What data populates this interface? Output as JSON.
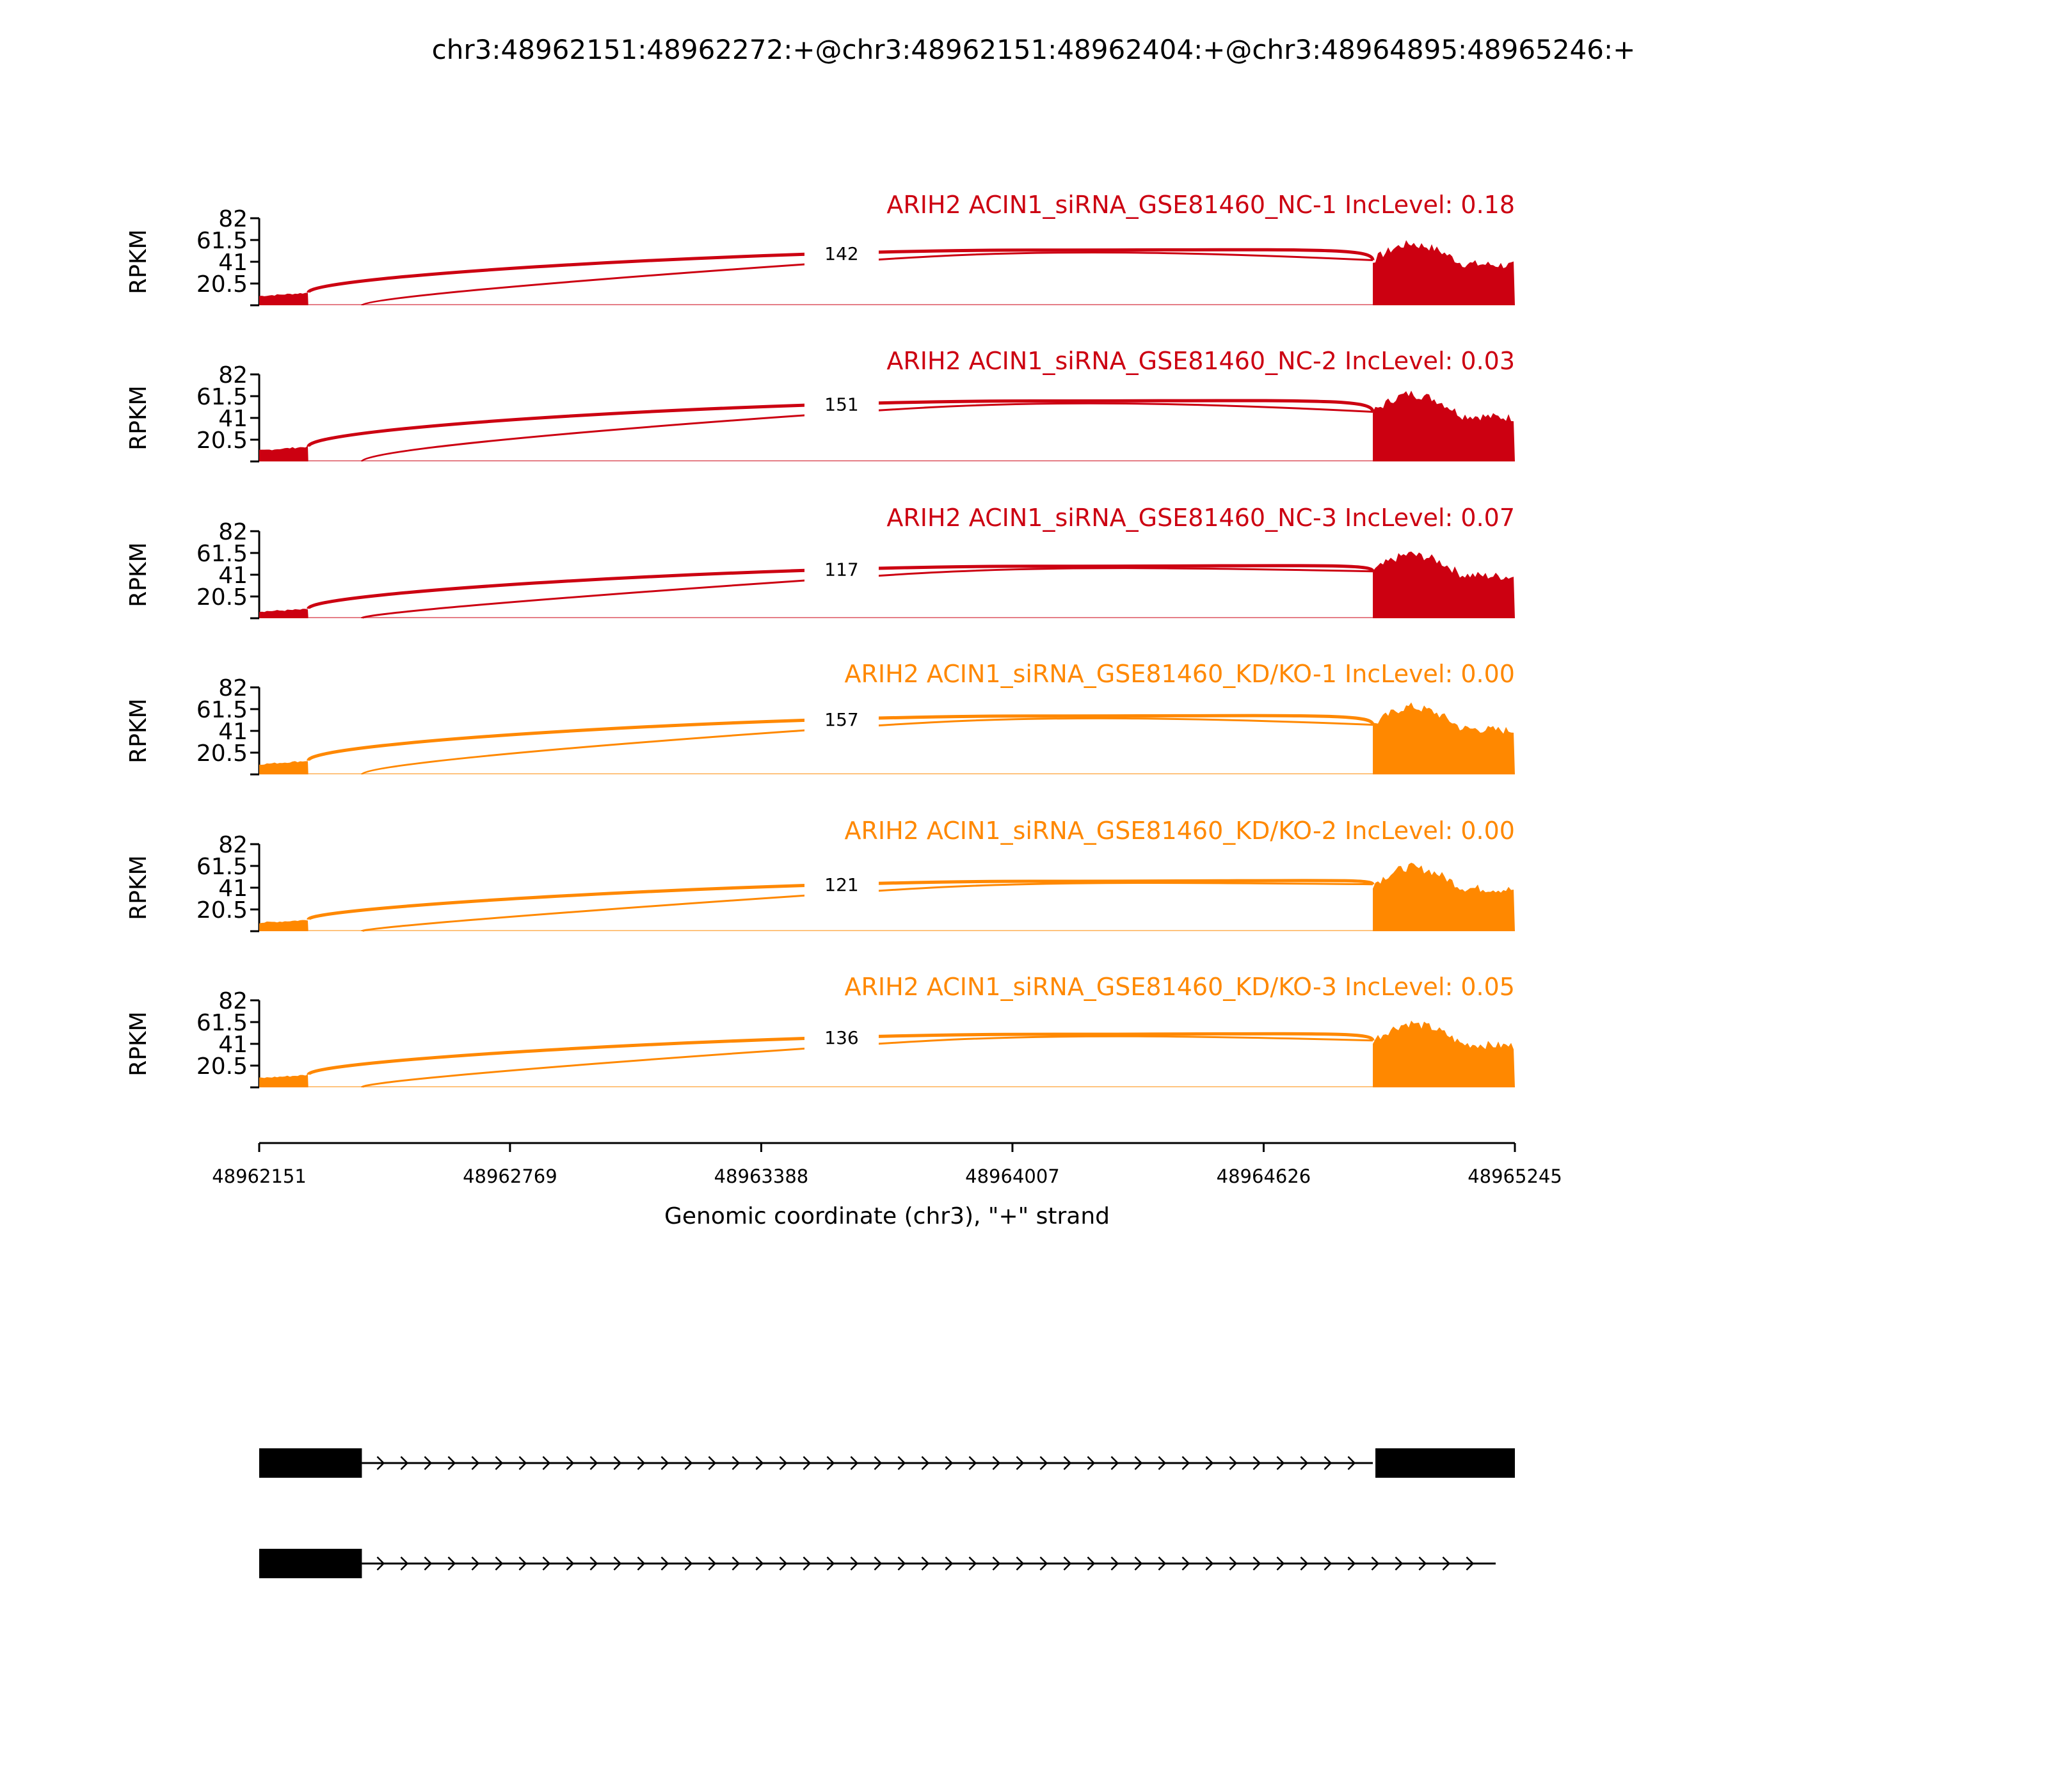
{
  "chart_data": {
    "type": "area",
    "title": "chr3:48962151:48962272:+@chr3:48962151:48962404:+@chr3:48964895:48965246:+",
    "xlabel": "Genomic coordinate (chr3), \"+\" strand",
    "ylabel": "RPKM",
    "xlim": [
      48962151,
      48965245
    ],
    "ylim": [
      0,
      82
    ],
    "xticks": [
      "48962151",
      "48962769",
      "48963388",
      "48964007",
      "48964626",
      "48965245"
    ],
    "xtick_values": [
      48962151,
      48962769,
      48963388,
      48964007,
      48964626,
      48965245
    ],
    "yticks": [
      "20.5",
      "41",
      "61.5",
      "82"
    ],
    "ytick_values": [
      20.5,
      41,
      61.5,
      82
    ],
    "exons": {
      "exon1": [
        48962151,
        48962272
      ],
      "exon2": [
        48962151,
        48962404
      ],
      "exon3": [
        48964895,
        48965246
      ]
    },
    "series": [
      {
        "name": "ARIH2 ACIN1_siRNA_GSE81460_NC-1 IncLevel: 0.18",
        "color": "#cc0011",
        "junction_count": "142",
        "exon1_rpkm": 10,
        "exon3_rpkm": 50,
        "arc_peak": 52
      },
      {
        "name": "ARIH2 ACIN1_siRNA_GSE81460_NC-2 IncLevel: 0.03",
        "color": "#cc0011",
        "junction_count": "151",
        "exon1_rpkm": 12,
        "exon3_rpkm": 55,
        "arc_peak": 57
      },
      {
        "name": "ARIH2 ACIN1_siRNA_GSE81460_NC-3 IncLevel: 0.07",
        "color": "#cc0011",
        "junction_count": "117",
        "exon1_rpkm": 7,
        "exon3_rpkm": 52,
        "arc_peak": 49
      },
      {
        "name": "ARIH2 ACIN1_siRNA_GSE81460_KD/KO-1 IncLevel: 0.00",
        "color": "#ff8800",
        "junction_count": "157",
        "exon1_rpkm": 11,
        "exon3_rpkm": 55,
        "arc_peak": 55
      },
      {
        "name": "ARIH2 ACIN1_siRNA_GSE81460_KD/KO-2 IncLevel: 0.00",
        "color": "#ff8800",
        "junction_count": "121",
        "exon1_rpkm": 9,
        "exon3_rpkm": 52,
        "arc_peak": 47
      },
      {
        "name": "ARIH2 ACIN1_siRNA_GSE81460_KD/KO-3 IncLevel: 0.05",
        "color": "#ff8800",
        "junction_count": "136",
        "exon1_rpkm": 10,
        "exon3_rpkm": 52,
        "arc_peak": 50
      }
    ]
  }
}
